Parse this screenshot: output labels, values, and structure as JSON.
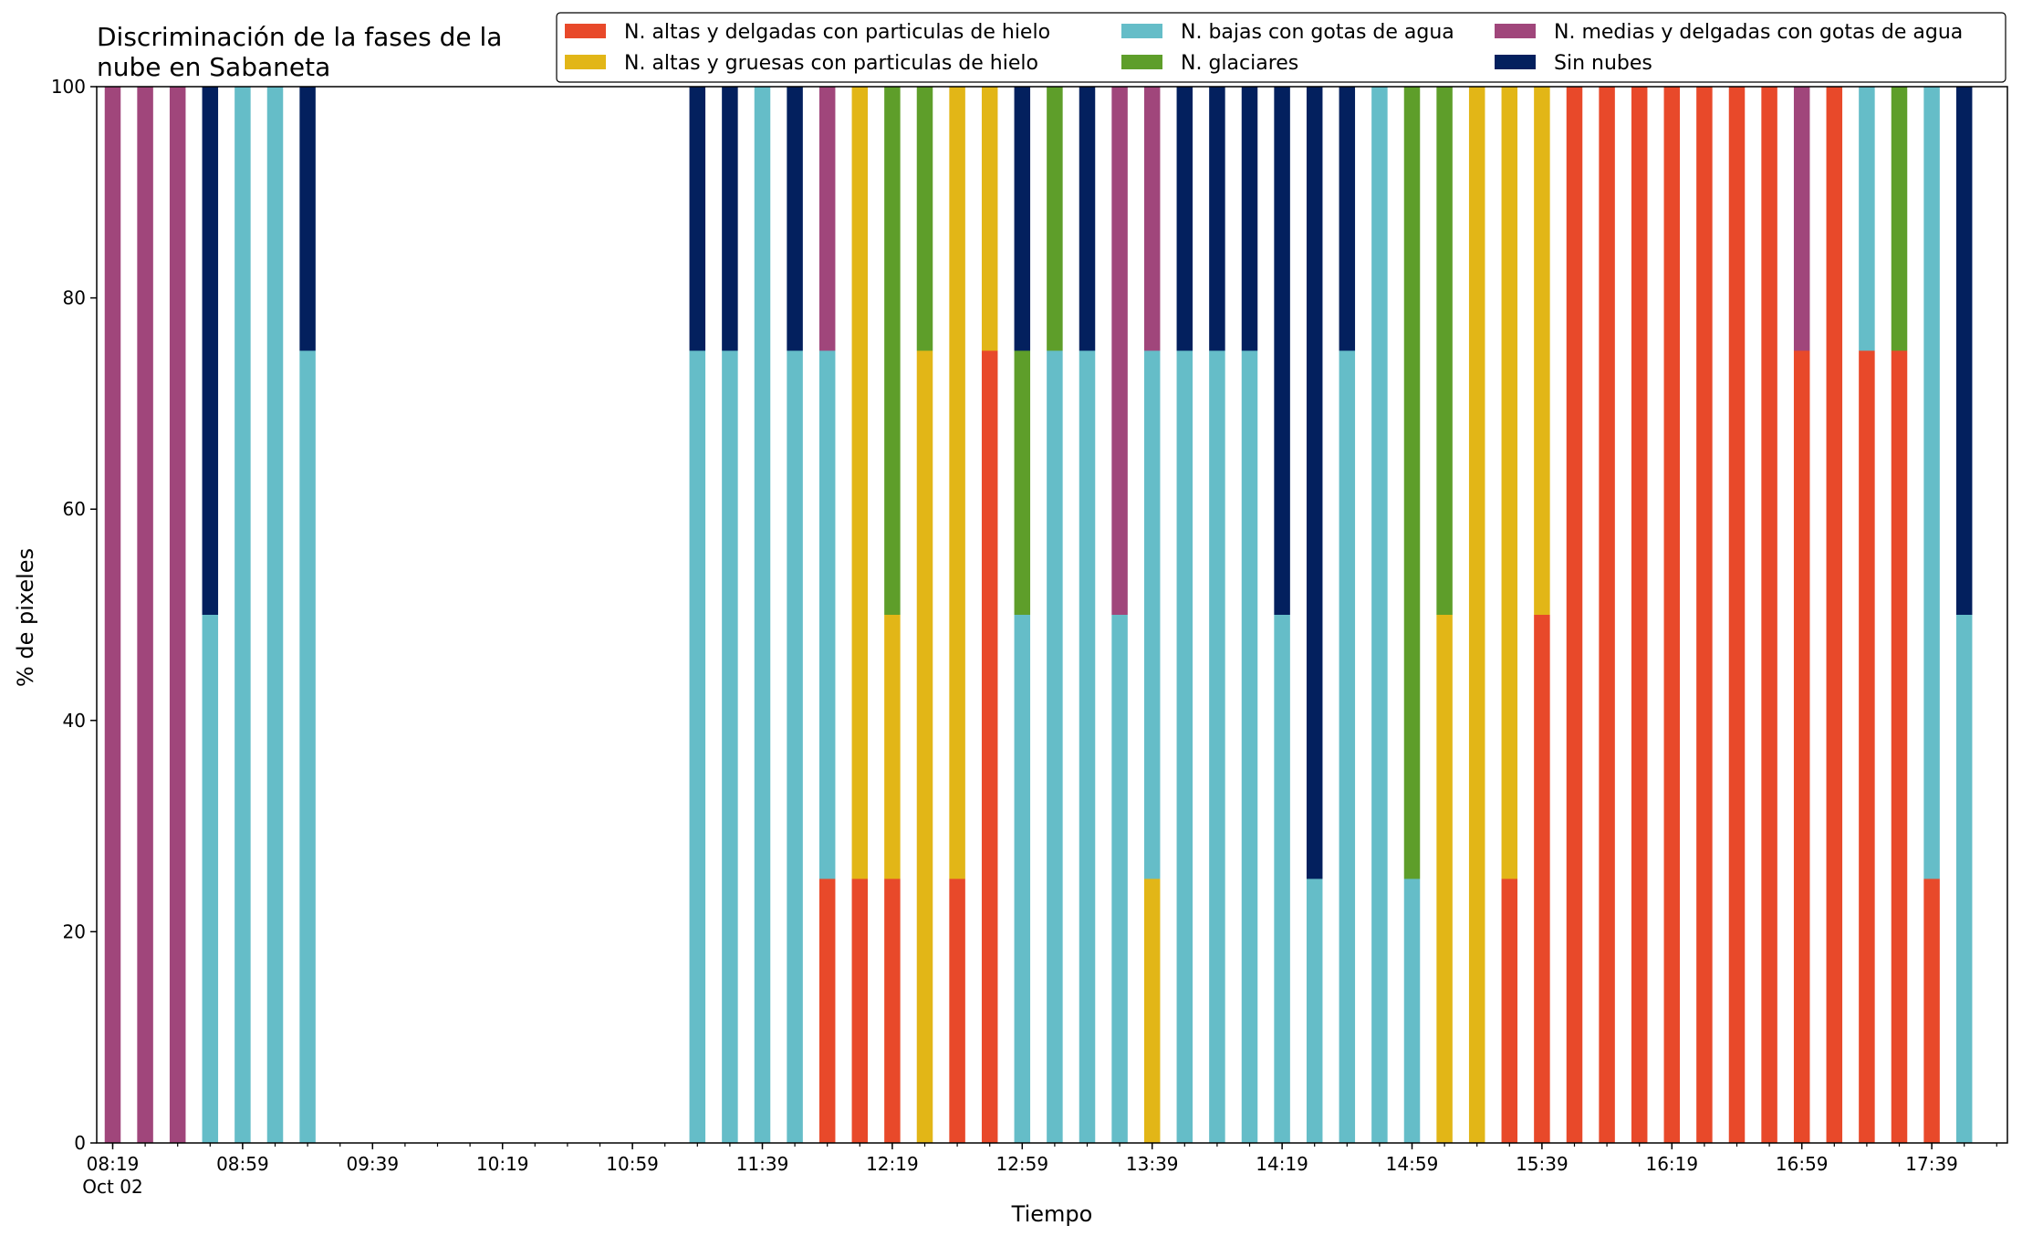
{
  "chart_data": {
    "type": "bar",
    "stacked": true,
    "title_lines": [
      "Discriminación de la fases de la",
      "nube en Sabaneta"
    ],
    "xlabel": "Tiempo",
    "ylabel": "% de pixeles",
    "ylim": [
      0,
      100
    ],
    "yticks": [
      0,
      20,
      40,
      60,
      80,
      100
    ],
    "x_tick_labels": [
      "08:19",
      "08:59",
      "09:39",
      "10:19",
      "10:59",
      "11:39",
      "12:19",
      "12:59",
      "13:39",
      "14:19",
      "14:59",
      "15:39",
      "16:19",
      "16:59",
      "17:39"
    ],
    "x_date_label": "Oct 02",
    "legend_position": "top-right",
    "legend_columns": 3,
    "times": [
      "08:19",
      "08:29",
      "08:39",
      "08:49",
      "08:59",
      "09:09",
      "09:19",
      "09:29",
      "09:39",
      "09:49",
      "09:59",
      "10:09",
      "10:19",
      "10:29",
      "10:39",
      "10:49",
      "10:59",
      "11:09",
      "11:19",
      "11:29",
      "11:39",
      "11:49",
      "11:59",
      "12:09",
      "12:19",
      "12:29",
      "12:39",
      "12:49",
      "12:59",
      "13:09",
      "13:19",
      "13:29",
      "13:39",
      "13:49",
      "13:59",
      "14:09",
      "14:19",
      "14:29",
      "14:39",
      "14:49",
      "14:59",
      "15:09",
      "15:19",
      "15:29",
      "15:39",
      "15:49",
      "15:59",
      "16:09",
      "16:19",
      "16:29",
      "16:39",
      "16:49",
      "16:59",
      "17:09",
      "17:19",
      "17:29",
      "17:39",
      "17:49"
    ],
    "series": [
      {
        "name": "N. altas y delgadas con particulas de hielo",
        "color": "#e8492a",
        "values": [
          0,
          0,
          0,
          0,
          0,
          0,
          0,
          0,
          0,
          0,
          0,
          0,
          0,
          0,
          0,
          0,
          0,
          0,
          0,
          0,
          0,
          0,
          25,
          25,
          25,
          0,
          25,
          75,
          0,
          0,
          0,
          0,
          0,
          0,
          0,
          0,
          0,
          0,
          0,
          0,
          0,
          0,
          0,
          25,
          50,
          100,
          100,
          100,
          100,
          100,
          100,
          100,
          75,
          100,
          75,
          75,
          25,
          0
        ]
      },
      {
        "name": "N. altas y gruesas con particulas de hielo",
        "color": "#e2b617",
        "values": [
          0,
          0,
          0,
          0,
          0,
          0,
          0,
          0,
          0,
          0,
          0,
          0,
          0,
          0,
          0,
          0,
          0,
          0,
          0,
          0,
          0,
          0,
          0,
          75,
          25,
          75,
          75,
          25,
          0,
          0,
          0,
          0,
          25,
          0,
          0,
          0,
          0,
          0,
          0,
          0,
          0,
          50,
          100,
          75,
          50,
          0,
          0,
          0,
          0,
          0,
          0,
          0,
          0,
          0,
          0,
          0,
          0,
          0
        ]
      },
      {
        "name": "N. bajas con gotas de agua",
        "color": "#65bdc8",
        "values": [
          0,
          0,
          0,
          50,
          100,
          100,
          75,
          0,
          0,
          0,
          0,
          0,
          0,
          0,
          0,
          0,
          0,
          0,
          75,
          75,
          100,
          75,
          50,
          0,
          0,
          0,
          0,
          0,
          50,
          75,
          75,
          50,
          50,
          75,
          75,
          75,
          50,
          25,
          75,
          100,
          25,
          0,
          0,
          0,
          0,
          0,
          0,
          0,
          0,
          0,
          0,
          0,
          0,
          0,
          25,
          0,
          75,
          50
        ]
      },
      {
        "name": "N. glaciares",
        "color": "#5e9e2a",
        "values": [
          0,
          0,
          0,
          0,
          0,
          0,
          0,
          0,
          0,
          0,
          0,
          0,
          0,
          0,
          0,
          0,
          0,
          0,
          0,
          0,
          0,
          0,
          0,
          0,
          50,
          25,
          0,
          0,
          25,
          25,
          0,
          0,
          0,
          0,
          0,
          0,
          0,
          0,
          0,
          0,
          75,
          50,
          0,
          0,
          0,
          0,
          0,
          0,
          0,
          0,
          0,
          0,
          0,
          0,
          0,
          25,
          0,
          0
        ]
      },
      {
        "name": "N. medias y delgadas con gotas de agua",
        "color": "#a0467b",
        "values": [
          100,
          100,
          100,
          0,
          0,
          0,
          0,
          0,
          0,
          0,
          0,
          0,
          0,
          0,
          0,
          0,
          0,
          0,
          0,
          0,
          0,
          0,
          25,
          0,
          0,
          0,
          0,
          0,
          0,
          0,
          0,
          50,
          25,
          0,
          0,
          0,
          0,
          0,
          0,
          0,
          0,
          0,
          0,
          0,
          0,
          0,
          0,
          0,
          0,
          0,
          0,
          0,
          25,
          0,
          0,
          0,
          0,
          0
        ]
      },
      {
        "name": "Sin nubes",
        "color": "#03205e",
        "values": [
          0,
          0,
          0,
          50,
          0,
          0,
          25,
          0,
          0,
          0,
          0,
          0,
          0,
          0,
          0,
          0,
          0,
          0,
          25,
          25,
          0,
          25,
          0,
          0,
          0,
          0,
          0,
          0,
          25,
          0,
          25,
          0,
          0,
          25,
          25,
          25,
          50,
          75,
          25,
          0,
          0,
          0,
          0,
          0,
          0,
          0,
          0,
          0,
          0,
          0,
          0,
          0,
          0,
          0,
          0,
          0,
          0,
          50
        ]
      }
    ]
  }
}
